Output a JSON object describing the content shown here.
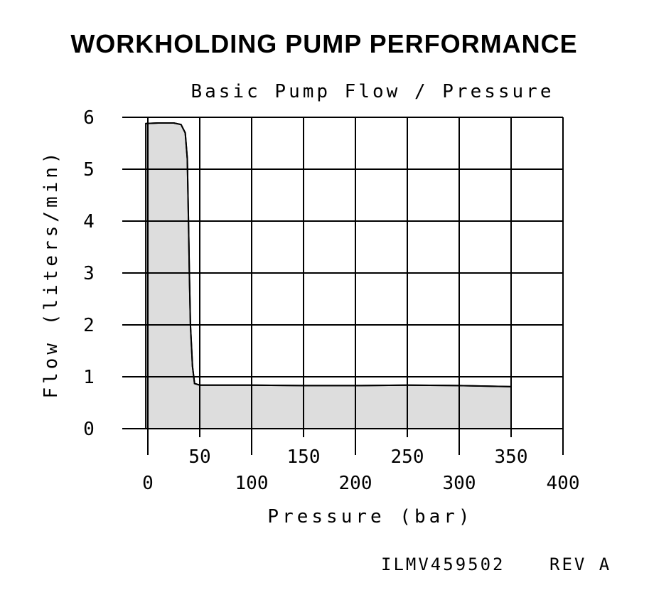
{
  "chart_data": {
    "type": "area",
    "title": "WORKHOLDING PUMP PERFORMANCE",
    "subtitle": "Basic Pump Flow / Pressure",
    "xlabel": "Pressure (bar)",
    "ylabel": "Flow (liters/min)",
    "xlim": [
      0,
      400
    ],
    "ylim": [
      0,
      6
    ],
    "grid": true,
    "x_ticks_upper": [
      "50",
      "150",
      "250",
      "350"
    ],
    "x_ticks_lower": [
      "0",
      "100",
      "200",
      "300",
      "400"
    ],
    "y_ticks": [
      "0",
      "1",
      "2",
      "3",
      "4",
      "5",
      "6"
    ],
    "series": [
      {
        "x": [
          -2,
          10,
          25,
          32,
          36,
          38,
          39,
          40,
          41,
          43,
          45,
          50,
          100,
          150,
          200,
          250,
          300,
          350
        ],
        "y": [
          5.88,
          5.89,
          5.89,
          5.86,
          5.7,
          5.2,
          4.2,
          3.0,
          2.0,
          1.2,
          0.87,
          0.84,
          0.84,
          0.83,
          0.83,
          0.84,
          0.83,
          0.81
        ]
      }
    ],
    "fill_color": "#dddddd",
    "line_color": "#000000"
  },
  "footer": {
    "code": "ILMV459502",
    "revision": "REV A"
  }
}
